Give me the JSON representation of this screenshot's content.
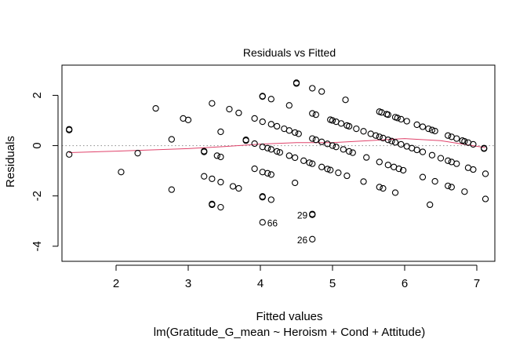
{
  "chart_data": {
    "type": "scatter",
    "title": "Residuals vs Fitted",
    "xlabel": "Fitted values",
    "subtitle": "lm(Gratitude_G_mean ~ Heroism + Cond + Attitude)",
    "ylabel": "Residuals",
    "xlim": [
      1.25,
      7.25
    ],
    "ylim": [
      -4.6,
      3.2
    ],
    "xticks": [
      2,
      3,
      4,
      5,
      6,
      7
    ],
    "yticks": [
      -4,
      -2,
      0,
      2
    ],
    "reference_line_y": 0,
    "colors": {
      "points": "#000000",
      "smooth": "#e0436b",
      "reference": "#9a9a9a"
    },
    "points": [
      {
        "x": 1.35,
        "y": 0.62
      },
      {
        "x": 1.35,
        "y": 0.65
      },
      {
        "x": 1.35,
        "y": -0.35
      },
      {
        "x": 2.07,
        "y": -1.05
      },
      {
        "x": 2.3,
        "y": -0.3
      },
      {
        "x": 2.55,
        "y": 1.48
      },
      {
        "x": 2.77,
        "y": 0.25
      },
      {
        "x": 2.77,
        "y": -1.75
      },
      {
        "x": 2.93,
        "y": 1.08
      },
      {
        "x": 3.0,
        "y": 1.02
      },
      {
        "x": 3.22,
        "y": -0.22
      },
      {
        "x": 3.22,
        "y": -1.22
      },
      {
        "x": 3.22,
        "y": -0.25
      },
      {
        "x": 3.33,
        "y": 1.68
      },
      {
        "x": 3.33,
        "y": -1.32
      },
      {
        "x": 3.33,
        "y": -2.32
      },
      {
        "x": 3.33,
        "y": -2.35
      },
      {
        "x": 3.4,
        "y": -0.4
      },
      {
        "x": 3.45,
        "y": 0.55
      },
      {
        "x": 3.45,
        "y": -0.45
      },
      {
        "x": 3.45,
        "y": -1.45
      },
      {
        "x": 3.45,
        "y": -2.45
      },
      {
        "x": 3.57,
        "y": 1.45
      },
      {
        "x": 3.62,
        "y": -1.62
      },
      {
        "x": 3.7,
        "y": 1.3
      },
      {
        "x": 3.7,
        "y": -1.7
      },
      {
        "x": 3.8,
        "y": 0.2
      },
      {
        "x": 3.8,
        "y": 0.23
      },
      {
        "x": 3.92,
        "y": 1.08
      },
      {
        "x": 3.92,
        "y": 0.08
      },
      {
        "x": 3.92,
        "y": -0.92
      },
      {
        "x": 4.03,
        "y": 1.97
      },
      {
        "x": 4.03,
        "y": 1.95
      },
      {
        "x": 4.03,
        "y": 0.95
      },
      {
        "x": 4.03,
        "y": -0.05
      },
      {
        "x": 4.03,
        "y": -1.05
      },
      {
        "x": 4.03,
        "y": -2.02
      },
      {
        "x": 4.03,
        "y": -2.05
      },
      {
        "x": 4.03,
        "y": -3.05
      },
      {
        "x": 4.1,
        "y": -0.1
      },
      {
        "x": 4.1,
        "y": -1.1
      },
      {
        "x": 4.15,
        "y": 1.85
      },
      {
        "x": 4.15,
        "y": 0.85
      },
      {
        "x": 4.15,
        "y": -0.15
      },
      {
        "x": 4.15,
        "y": -1.15
      },
      {
        "x": 4.15,
        "y": -2.15
      },
      {
        "x": 4.23,
        "y": 0.77
      },
      {
        "x": 4.23,
        "y": -0.23
      },
      {
        "x": 4.27,
        "y": -0.27
      },
      {
        "x": 4.33,
        "y": 0.67
      },
      {
        "x": 4.4,
        "y": 1.6
      },
      {
        "x": 4.4,
        "y": 0.6
      },
      {
        "x": 4.4,
        "y": -0.4
      },
      {
        "x": 4.48,
        "y": 0.52
      },
      {
        "x": 4.48,
        "y": -0.48
      },
      {
        "x": 4.48,
        "y": -1.48
      },
      {
        "x": 4.5,
        "y": 2.5
      },
      {
        "x": 4.5,
        "y": 2.47
      },
      {
        "x": 4.53,
        "y": 0.47
      },
      {
        "x": 4.6,
        "y": -0.6
      },
      {
        "x": 4.68,
        "y": -0.68
      },
      {
        "x": 4.72,
        "y": 2.28
      },
      {
        "x": 4.72,
        "y": 1.28
      },
      {
        "x": 4.72,
        "y": 0.28
      },
      {
        "x": 4.72,
        "y": -0.72
      },
      {
        "x": 4.72,
        "y": -2.72
      },
      {
        "x": 4.72,
        "y": -2.75
      },
      {
        "x": 4.72,
        "y": -3.72
      },
      {
        "x": 4.77,
        "y": 1.23
      },
      {
        "x": 4.77,
        "y": 0.23
      },
      {
        "x": 4.85,
        "y": 2.15
      },
      {
        "x": 4.85,
        "y": 0.15
      },
      {
        "x": 4.85,
        "y": -0.85
      },
      {
        "x": 4.93,
        "y": 0.07
      },
      {
        "x": 4.93,
        "y": -0.93
      },
      {
        "x": 4.97,
        "y": 1.03
      },
      {
        "x": 4.97,
        "y": -0.97
      },
      {
        "x": 5.0,
        "y": 1.0
      },
      {
        "x": 5.0,
        "y": 0.0
      },
      {
        "x": 5.05,
        "y": 0.95
      },
      {
        "x": 5.05,
        "y": -0.05
      },
      {
        "x": 5.08,
        "y": -1.08
      },
      {
        "x": 5.12,
        "y": 0.88
      },
      {
        "x": 5.15,
        "y": -0.15
      },
      {
        "x": 5.18,
        "y": 1.82
      },
      {
        "x": 5.2,
        "y": 0.8
      },
      {
        "x": 5.2,
        "y": -1.2
      },
      {
        "x": 5.23,
        "y": 0.77
      },
      {
        "x": 5.23,
        "y": -0.23
      },
      {
        "x": 5.28,
        "y": -0.28
      },
      {
        "x": 5.33,
        "y": 0.67
      },
      {
        "x": 5.43,
        "y": 0.57
      },
      {
        "x": 5.43,
        "y": -1.43
      },
      {
        "x": 5.47,
        "y": -0.47
      },
      {
        "x": 5.53,
        "y": 0.47
      },
      {
        "x": 5.6,
        "y": 0.4
      },
      {
        "x": 5.65,
        "y": 1.35
      },
      {
        "x": 5.65,
        "y": 0.35
      },
      {
        "x": 5.65,
        "y": -0.65
      },
      {
        "x": 5.65,
        "y": -1.65
      },
      {
        "x": 5.68,
        "y": 1.32
      },
      {
        "x": 5.7,
        "y": 0.3
      },
      {
        "x": 5.7,
        "y": -1.7
      },
      {
        "x": 5.75,
        "y": 1.25
      },
      {
        "x": 5.77,
        "y": 1.23
      },
      {
        "x": 5.77,
        "y": 0.23
      },
      {
        "x": 5.77,
        "y": -0.77
      },
      {
        "x": 5.82,
        "y": 0.18
      },
      {
        "x": 5.85,
        "y": -0.85
      },
      {
        "x": 5.87,
        "y": 1.13
      },
      {
        "x": 5.87,
        "y": 0.13
      },
      {
        "x": 5.87,
        "y": -1.87
      },
      {
        "x": 5.9,
        "y": 1.1
      },
      {
        "x": 5.92,
        "y": -0.92
      },
      {
        "x": 5.95,
        "y": 1.05
      },
      {
        "x": 5.95,
        "y": 0.05
      },
      {
        "x": 5.98,
        "y": -0.98
      },
      {
        "x": 6.03,
        "y": 0.97
      },
      {
        "x": 6.03,
        "y": -0.03
      },
      {
        "x": 6.1,
        "y": -0.1
      },
      {
        "x": 6.17,
        "y": 0.83
      },
      {
        "x": 6.17,
        "y": -0.17
      },
      {
        "x": 6.25,
        "y": 0.75
      },
      {
        "x": 6.25,
        "y": -0.25
      },
      {
        "x": 6.25,
        "y": -1.25
      },
      {
        "x": 6.33,
        "y": 0.67
      },
      {
        "x": 6.35,
        "y": -2.35
      },
      {
        "x": 6.38,
        "y": 0.62
      },
      {
        "x": 6.38,
        "y": -0.38
      },
      {
        "x": 6.42,
        "y": 0.58
      },
      {
        "x": 6.42,
        "y": -1.42
      },
      {
        "x": 6.5,
        "y": -0.5
      },
      {
        "x": 6.6,
        "y": 0.4
      },
      {
        "x": 6.6,
        "y": -0.6
      },
      {
        "x": 6.6,
        "y": -1.6
      },
      {
        "x": 6.65,
        "y": 0.35
      },
      {
        "x": 6.65,
        "y": -0.65
      },
      {
        "x": 6.65,
        "y": -1.65
      },
      {
        "x": 6.72,
        "y": 0.28
      },
      {
        "x": 6.72,
        "y": -0.72
      },
      {
        "x": 6.8,
        "y": 0.2
      },
      {
        "x": 6.83,
        "y": 0.17
      },
      {
        "x": 6.83,
        "y": -1.83
      },
      {
        "x": 6.88,
        "y": 0.12
      },
      {
        "x": 6.88,
        "y": -0.88
      },
      {
        "x": 6.95,
        "y": 0.05
      },
      {
        "x": 6.95,
        "y": -0.95
      },
      {
        "x": 7.1,
        "y": -0.1
      },
      {
        "x": 7.1,
        "y": -0.12
      },
      {
        "x": 7.12,
        "y": -1.12
      },
      {
        "x": 7.12,
        "y": -2.12
      }
    ],
    "smooth_line": [
      {
        "x": 1.35,
        "y": -0.28
      },
      {
        "x": 2.0,
        "y": -0.22
      },
      {
        "x": 3.0,
        "y": -0.12
      },
      {
        "x": 3.5,
        "y": -0.04
      },
      {
        "x": 4.0,
        "y": 0.06
      },
      {
        "x": 4.5,
        "y": 0.12
      },
      {
        "x": 5.0,
        "y": 0.12
      },
      {
        "x": 5.5,
        "y": 0.2
      },
      {
        "x": 6.0,
        "y": 0.28
      },
      {
        "x": 6.5,
        "y": 0.2
      },
      {
        "x": 7.12,
        "y": -0.08
      }
    ],
    "annotations": [
      {
        "label": "29",
        "x": 4.72,
        "y": -2.75,
        "side": "left"
      },
      {
        "label": "66",
        "x": 4.03,
        "y": -3.05,
        "side": "right"
      },
      {
        "label": "26",
        "x": 4.72,
        "y": -3.72,
        "side": "left"
      }
    ]
  }
}
